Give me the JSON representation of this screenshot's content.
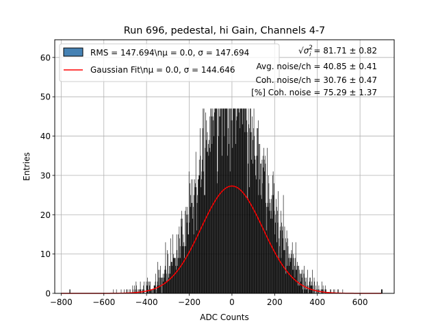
{
  "chart_data": {
    "type": "bar",
    "title": "Run 696, pedestal, hi Gain, Channels 4-7",
    "xlabel": "ADC Counts",
    "ylabel": "Entries",
    "xlim": [
      -830,
      760
    ],
    "ylim": [
      0,
      64.5
    ],
    "xticks": [
      -800,
      -600,
      -400,
      -200,
      0,
      200,
      400,
      600
    ],
    "yticks": [
      0,
      10,
      20,
      30,
      40,
      50,
      60
    ],
    "xtick_labels": [
      "−800",
      "−600",
      "−400",
      "−200",
      "0",
      "200",
      "400",
      "600"
    ],
    "ytick_labels": [
      "0",
      "10",
      "20",
      "30",
      "40",
      "50",
      "60"
    ],
    "grid": true,
    "legend_position": "top-left",
    "series": [
      {
        "name": "RMS = 147.694\\nμ = 0.0, σ = 147.694",
        "kind": "histogram",
        "color": "#000000",
        "legend_patch_color": "#4682b4",
        "mean": 0.0,
        "sigma": 147.694,
        "approx_total_entries": 9400,
        "bin_width": 2,
        "peak_entries": 47,
        "x_range": [
          -760,
          700
        ]
      },
      {
        "name": "Gaussian Fit\\nμ = 0.0, σ = 144.646",
        "kind": "line",
        "color": "#ff0000",
        "mu": 0.0,
        "sigma": 144.646,
        "amplitude": 27.3,
        "x_range": [
          -800,
          700
        ]
      }
    ],
    "annotations": [
      {
        "prefix": "√",
        "sym": "σ",
        "sup": "2",
        "sub": "i",
        "value": " = 81.71 ± 0.82"
      },
      {
        "text": "Avg. noise/ch = 40.85 ± 0.41"
      },
      {
        "text": "Coh. noise/ch = 30.76 ± 0.47"
      },
      {
        "text": "[%] Coh. noise = 75.29 ± 1.37"
      }
    ]
  }
}
